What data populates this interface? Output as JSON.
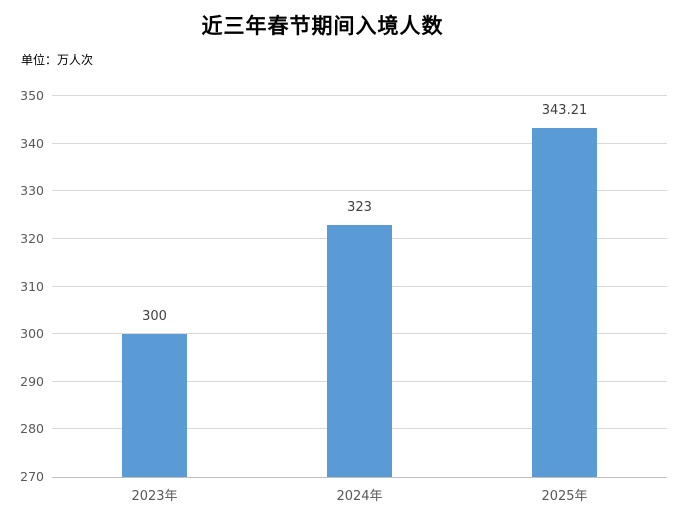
{
  "chart_data": {
    "type": "bar",
    "title": "近三年春节期间入境人数",
    "unit_label": "单位：万人次",
    "categories": [
      "2023年",
      "2024年",
      "2025年"
    ],
    "values": [
      300,
      323,
      343.21
    ],
    "value_labels": [
      "300",
      "323",
      "343.21"
    ],
    "ytick_labels": [
      "270",
      "280",
      "290",
      "300",
      "310",
      "320",
      "330",
      "340",
      "350"
    ],
    "ylim": [
      270,
      350
    ],
    "xlabel": "",
    "ylabel": "",
    "grid": true,
    "legend_position": "none",
    "colors": {
      "bar": "#5B9BD5",
      "gridline": "#D9D9D9",
      "axis_line": "#BFBFBF",
      "axis_label": "#595959",
      "value_label": "#404040",
      "title": "#000000",
      "unit_label": "#000000",
      "background": "#FFFFFF"
    }
  }
}
